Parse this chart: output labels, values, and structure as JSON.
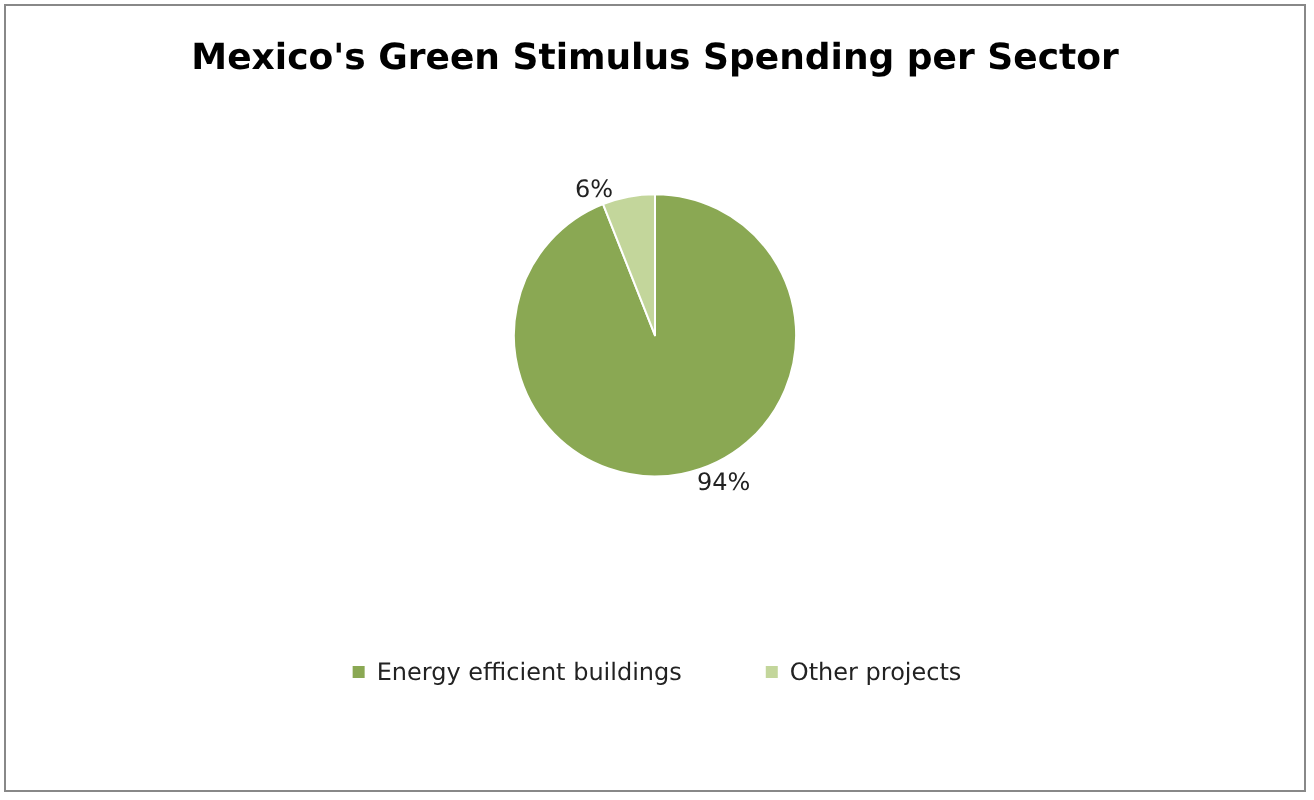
{
  "chart_data": {
    "type": "pie",
    "title": "Mexico's Green Stimulus Spending per Sector",
    "categories": [
      "Energy efficient buildings",
      "Other projects"
    ],
    "values": [
      94,
      6
    ],
    "colors": [
      "#8aa853",
      "#c3d69b"
    ],
    "value_labels": [
      "94%",
      "6%"
    ],
    "legend": "bottom"
  }
}
